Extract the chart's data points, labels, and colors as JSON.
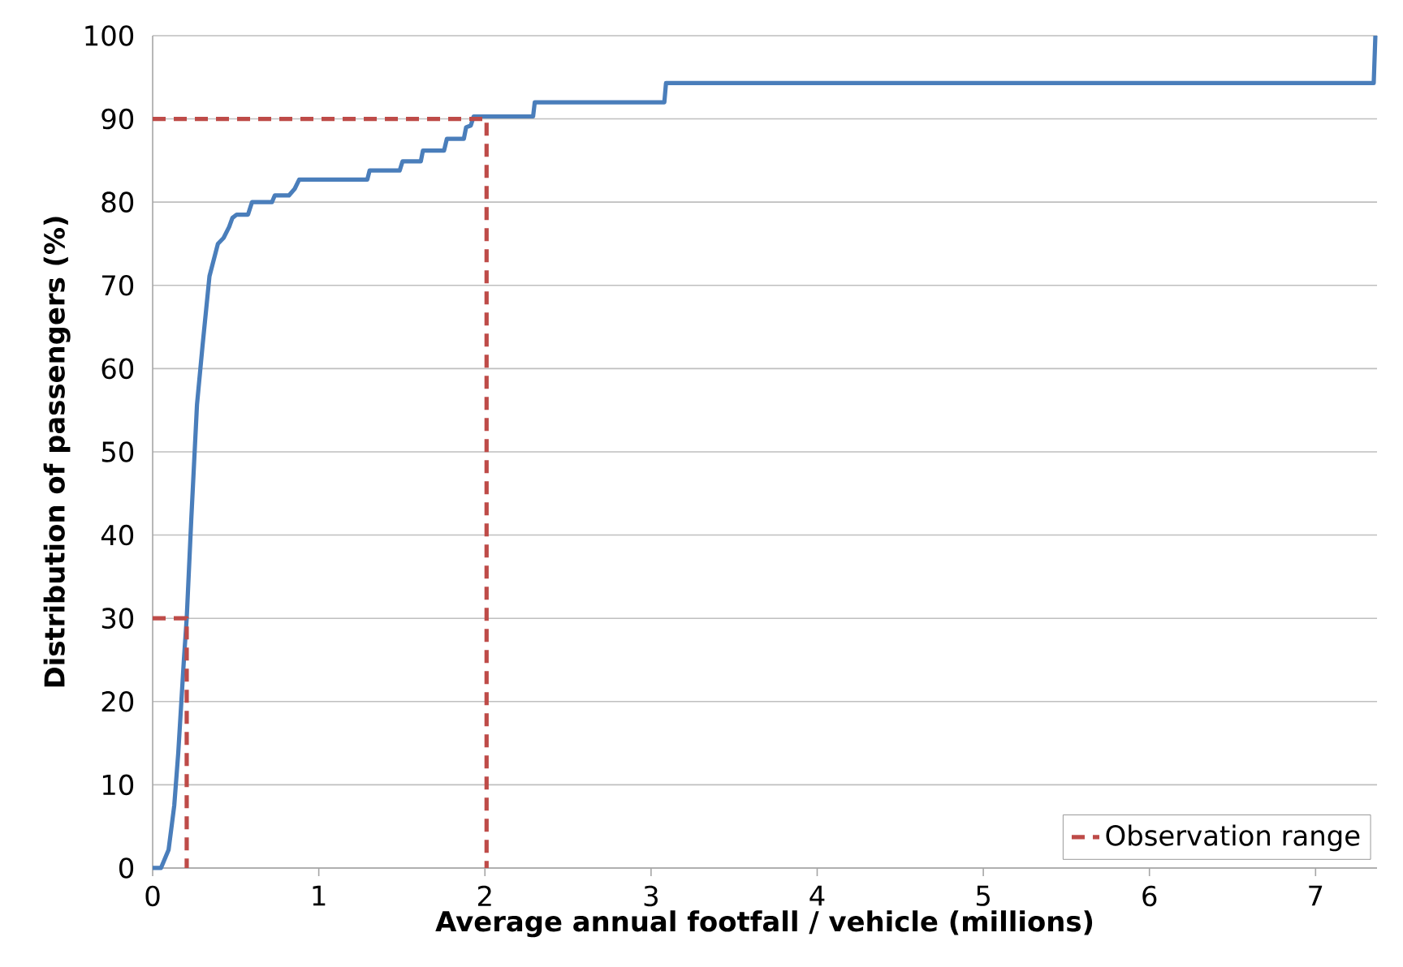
{
  "chart_data": {
    "type": "line",
    "xlabel": "Average annual footfall / vehicle (millions)",
    "ylabel": "Distribution of passengers (%)",
    "xlim": [
      0,
      7.37
    ],
    "ylim": [
      0,
      100
    ],
    "xticks": [
      0,
      1,
      2,
      3,
      4,
      5,
      6,
      7
    ],
    "yticks": [
      0,
      10,
      20,
      30,
      40,
      50,
      60,
      70,
      80,
      90,
      100
    ],
    "grid": "y",
    "legend": "bottom right",
    "marker": "none",
    "series": [
      {
        "color": "#4a7ebb",
        "line_style": "solid",
        "x": [
          0,
          0.05,
          0.096,
          0.13,
          0.154,
          0.188,
          0.205,
          0.232,
          0.267,
          0.3,
          0.342,
          0.393,
          0.427,
          0.46,
          0.48,
          0.506,
          0.574,
          0.598,
          0.718,
          0.735,
          0.82,
          0.855,
          0.882,
          1.292,
          1.306,
          1.487,
          1.504,
          1.614,
          1.627,
          1.754,
          1.771,
          1.873,
          1.887,
          1.915,
          1.932,
          2.29,
          2.3,
          3.08,
          3.09,
          7.35,
          7.36
        ],
        "values": [
          0,
          0,
          2.2,
          7.5,
          13.8,
          25,
          30,
          41.7,
          55.7,
          62.7,
          71.1,
          75,
          75.7,
          77,
          78.1,
          78.5,
          78.5,
          80,
          80,
          80.8,
          80.8,
          81.6,
          82.7,
          82.7,
          83.8,
          83.8,
          84.9,
          84.9,
          86.2,
          86.2,
          87.6,
          87.6,
          89,
          89.2,
          90.3,
          90.3,
          92,
          92,
          94.3,
          94.3,
          100
        ]
      },
      {
        "name": "Observation range",
        "color": "#be4b48",
        "line_style": "dashed",
        "x": [
          0,
          0.205,
          0.205,
          null,
          0,
          2.01,
          2.01
        ],
        "values": [
          30,
          30,
          0,
          null,
          90,
          90,
          0
        ]
      }
    ]
  }
}
